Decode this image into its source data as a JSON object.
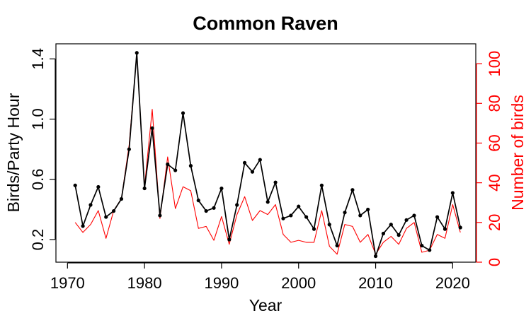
{
  "chart_data": {
    "type": "line",
    "title": "Common Raven",
    "xlabel": "Year",
    "ylabel_left": "Birds/Party Hour",
    "ylabel_right": "Number of birds",
    "xlim": [
      1968.5,
      2023
    ],
    "ylim_left": [
      0.05,
      1.5
    ],
    "ylim_right": [
      0,
      110
    ],
    "x_ticks": [
      1970,
      1980,
      1990,
      2000,
      2010,
      2020
    ],
    "y_ticks_left": [
      0.2,
      0.6,
      1.0,
      1.4
    ],
    "y_ticks_right": [
      0,
      20,
      40,
      60,
      80,
      100
    ],
    "x_tick_labels": [
      "1970",
      "1980",
      "1990",
      "2000",
      "2010",
      "2020"
    ],
    "y_tick_labels_left": [
      "0.2",
      "0.6",
      "1.0",
      "1.4"
    ],
    "y_tick_labels_right": [
      "0",
      "20",
      "40",
      "60",
      "80",
      "100"
    ],
    "colors": {
      "primary": "#000000",
      "secondary": "#ff0000"
    },
    "grid": false,
    "series": [
      {
        "axis": "left",
        "color": "#000000",
        "markers": true,
        "x": [
          1971,
          1972,
          1973,
          1974,
          1975,
          1976,
          1977,
          1978,
          1979,
          1980,
          1981,
          1982,
          1983,
          1984,
          1985,
          1986,
          1987,
          1988,
          1989,
          1990,
          1991,
          1992,
          1993,
          1994,
          1995,
          1996,
          1997,
          1998,
          1999,
          2000,
          2001,
          2002,
          2003,
          2004,
          2005,
          2006,
          2007,
          2008,
          2009,
          2010,
          2011,
          2012,
          2013,
          2014,
          2015,
          2016,
          2017,
          2018,
          2019,
          2020,
          2021
        ],
        "values": [
          0.56,
          0.29,
          0.43,
          0.55,
          0.35,
          0.39,
          0.47,
          0.8,
          1.44,
          0.54,
          0.94,
          0.36,
          0.7,
          0.66,
          1.04,
          0.69,
          0.46,
          0.39,
          0.41,
          0.54,
          0.2,
          0.43,
          0.71,
          0.65,
          0.73,
          0.45,
          0.58,
          0.34,
          0.36,
          0.42,
          0.35,
          0.27,
          0.56,
          0.3,
          0.16,
          0.38,
          0.53,
          0.36,
          0.4,
          0.09,
          0.24,
          0.3,
          0.23,
          0.33,
          0.36,
          0.16,
          0.13,
          0.35,
          0.27,
          0.51,
          0.28
        ]
      },
      {
        "axis": "right",
        "color": "#ff0000",
        "markers": false,
        "x": [
          1971,
          1972,
          1973,
          1974,
          1975,
          1976,
          1977,
          1978,
          1979,
          1980,
          1981,
          1982,
          1983,
          1984,
          1985,
          1986,
          1987,
          1988,
          1989,
          1990,
          1991,
          1992,
          1993,
          1994,
          1995,
          1996,
          1997,
          1998,
          1999,
          2000,
          2001,
          2002,
          2003,
          2004,
          2005,
          2006,
          2007,
          2008,
          2009,
          2010,
          2011,
          2012,
          2013,
          2014,
          2015,
          2016,
          2017,
          2018,
          2019,
          2020,
          2021
        ],
        "values": [
          20,
          15,
          19,
          26,
          12,
          26,
          32,
          59,
          105,
          38,
          77,
          22,
          53,
          27,
          38,
          36,
          17,
          18,
          11,
          23,
          9,
          24,
          33,
          21,
          26,
          24,
          29,
          14,
          10,
          11,
          10,
          10,
          26,
          8,
          4,
          19,
          18,
          10,
          14,
          4,
          10,
          13,
          9,
          17,
          20,
          5,
          6,
          14,
          12,
          29,
          15
        ]
      }
    ]
  }
}
